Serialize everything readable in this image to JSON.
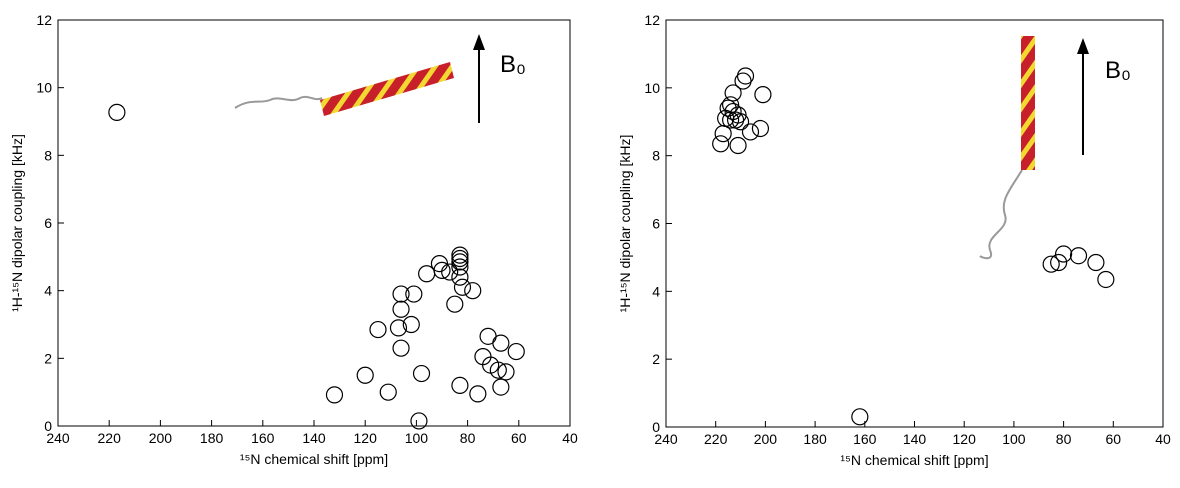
{
  "chart_data": [
    {
      "type": "scatter",
      "x_label": "¹⁵N chemical shift  [ppm]",
      "y_label": "¹H-¹⁵N dipolar coupling  [kHz]",
      "annotation": "B₀",
      "xlim": [
        240,
        40
      ],
      "ylim": [
        0,
        12
      ],
      "xticks": [
        240,
        220,
        200,
        180,
        160,
        140,
        120,
        100,
        80,
        60,
        40
      ],
      "yticks": [
        0,
        2,
        4,
        6,
        8,
        10,
        12
      ],
      "x": [
        217,
        132,
        120,
        111,
        115,
        107,
        106,
        106,
        106,
        101,
        102,
        98,
        99,
        96,
        91,
        90,
        87,
        85,
        83,
        83,
        83,
        83,
        83,
        82,
        78,
        83,
        76,
        74,
        72,
        71,
        68,
        67,
        67,
        65,
        61
      ],
      "y": [
        9.27,
        0.92,
        1.5,
        1.0,
        2.85,
        2.9,
        3.45,
        3.9,
        2.3,
        3.9,
        3.0,
        1.55,
        0.15,
        4.5,
        4.8,
        4.6,
        4.55,
        3.6,
        5.05,
        4.95,
        4.85,
        4.7,
        4.4,
        4.1,
        4.0,
        1.2,
        0.95,
        2.05,
        2.65,
        1.8,
        1.65,
        2.45,
        1.15,
        1.6,
        2.2
      ]
    },
    {
      "type": "scatter",
      "x_label": "¹⁵N chemical shift  [ppm]",
      "y_label": "¹H-¹⁵N dipolar coupling  [kHz]",
      "annotation": "B₀",
      "xlim": [
        240,
        40
      ],
      "ylim": [
        0,
        12
      ],
      "xticks": [
        240,
        220,
        200,
        180,
        160,
        140,
        120,
        100,
        80,
        60,
        40
      ],
      "yticks": [
        0,
        2,
        4,
        6,
        8,
        10,
        12
      ],
      "x": [
        218,
        217,
        216,
        215,
        214,
        214,
        213,
        213,
        212,
        211,
        211,
        210,
        209,
        208,
        206,
        202,
        201,
        162,
        85,
        82,
        80,
        74,
        67,
        63
      ],
      "y": [
        8.35,
        8.65,
        9.1,
        9.4,
        9.05,
        9.5,
        9.85,
        9.3,
        9.05,
        8.3,
        9.2,
        9.0,
        10.2,
        10.35,
        8.7,
        8.8,
        9.8,
        0.3,
        4.8,
        4.85,
        5.1,
        5.05,
        4.85,
        4.35
      ]
    }
  ]
}
